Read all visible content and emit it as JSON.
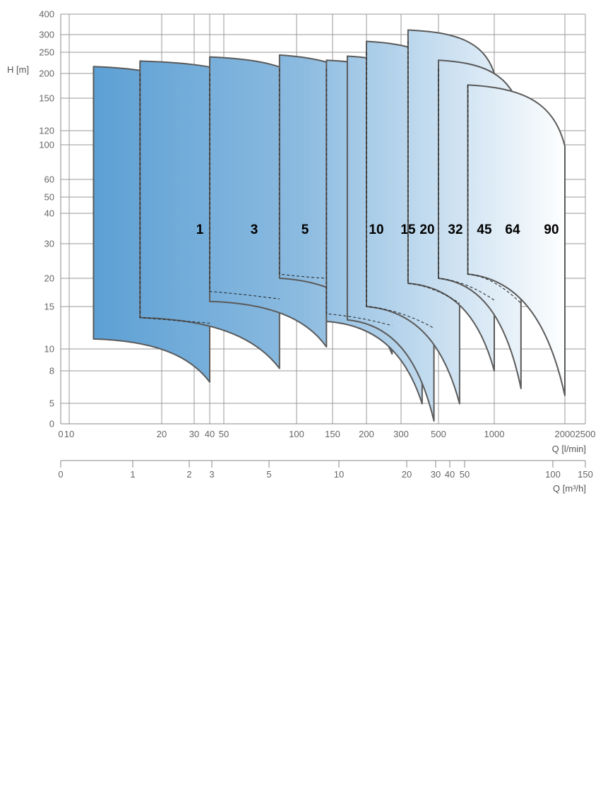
{
  "chart_data": {
    "type": "area",
    "y_unit_label": "H [m]",
    "x_unit_label": "Q [l/min]",
    "x2_unit_label": "Q [m³/h]",
    "y_ticks": [
      "0",
      "5",
      "8",
      "10",
      "15",
      "20",
      "30",
      "40",
      "50",
      "60",
      "100",
      "120",
      "150",
      "200",
      "250",
      "300",
      "400"
    ],
    "x_ticks": [
      "0",
      "10",
      "20",
      "30",
      "40",
      "50",
      "100",
      "150",
      "200",
      "300",
      "500",
      "1000",
      "2000",
      "2500"
    ],
    "x2_ticks": [
      "0",
      "1",
      "2",
      "3",
      "5",
      "10",
      "20",
      "30",
      "40",
      "50",
      "100",
      "150"
    ],
    "grid": true,
    "colors": {
      "fill_start": "#5b9fd4",
      "fill_end": "#ffffff",
      "curve": "#5a5a5a",
      "grid": "#999999",
      "label": "#000000"
    },
    "series": [
      {
        "name": "1",
        "q_min_lpm": 12,
        "q_max_lpm": 40,
        "h_top_start_m": 215,
        "h_top_end_m": 135,
        "h_bottom_start_m": 11,
        "h_bottom_end_m": 6.8
      },
      {
        "name": "3",
        "q_min_lpm": 17,
        "q_max_lpm": 85,
        "h_top_start_m": 228,
        "h_top_end_m": 140,
        "h_bottom_start_m": 13.5,
        "h_bottom_end_m": 8.2
      },
      {
        "name": "5",
        "q_min_lpm": 40,
        "q_max_lpm": 140,
        "h_top_start_m": 238,
        "h_top_end_m": 138,
        "h_bottom_start_m": 15.8,
        "h_bottom_end_m": 10.2
      },
      {
        "name": "10",
        "q_min_lpm": 85,
        "q_max_lpm": 270,
        "h_top_start_m": 243,
        "h_top_end_m": 113,
        "h_bottom_start_m": 20,
        "h_bottom_end_m": 9.5
      },
      {
        "name": "15",
        "q_min_lpm": 140,
        "q_max_lpm": 400,
        "h_top_start_m": 230,
        "h_top_end_m": 140,
        "h_bottom_start_m": 13,
        "h_bottom_end_m": 4.9
      },
      {
        "name": "20",
        "q_min_lpm": 170,
        "q_max_lpm": 470,
        "h_top_start_m": 240,
        "h_top_end_m": 140,
        "h_bottom_start_m": 13.2,
        "h_bottom_end_m": 0.7
      },
      {
        "name": "32",
        "q_min_lpm": 200,
        "q_max_lpm": 650,
        "h_top_start_m": 280,
        "h_top_end_m": 150,
        "h_bottom_start_m": 15,
        "h_bottom_end_m": 4.9
      },
      {
        "name": "45",
        "q_min_lpm": 330,
        "q_max_lpm": 1000,
        "h_top_start_m": 320,
        "h_top_end_m": 200,
        "h_bottom_start_m": 19,
        "h_bottom_end_m": 8.0
      },
      {
        "name": "64",
        "q_min_lpm": 500,
        "q_max_lpm": 1300,
        "h_top_start_m": 230,
        "h_top_end_m": 135,
        "h_bottom_start_m": 20,
        "h_bottom_end_m": 6.2
      },
      {
        "name": "90",
        "q_min_lpm": 720,
        "q_max_lpm": 2000,
        "h_top_start_m": 175,
        "h_top_end_m": 98,
        "h_bottom_start_m": 21,
        "h_bottom_end_m": 5.6
      }
    ]
  }
}
